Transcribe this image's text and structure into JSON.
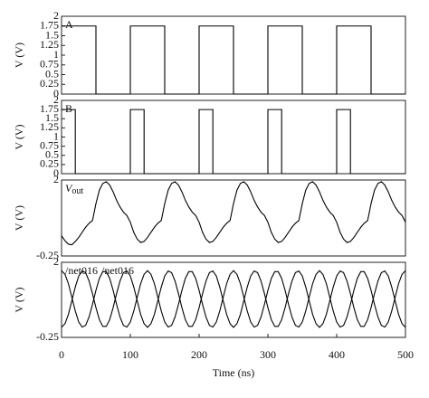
{
  "chart_data": [
    {
      "type": "line",
      "ylabel": "V (V)",
      "x": [
        0,
        50,
        50,
        100,
        100,
        150,
        150,
        200,
        200,
        250,
        250,
        300,
        300,
        350,
        350,
        400,
        400,
        450,
        450,
        500
      ],
      "series": [
        {
          "name": "A",
          "color": "#000000",
          "values": [
            1.75,
            1.75,
            0,
            0,
            1.75,
            1.75,
            0,
            0,
            1.75,
            1.75,
            0,
            0,
            1.75,
            1.75,
            0,
            0,
            1.75,
            1.75,
            0,
            0
          ]
        }
      ],
      "xlim": [
        0,
        500
      ],
      "ylim": [
        0,
        2
      ],
      "yticks": [
        0,
        0.25,
        0.5,
        0.75,
        1,
        1.25,
        1.5,
        1.75,
        2
      ]
    },
    {
      "type": "line",
      "ylabel": "V (V)",
      "x": [
        0,
        20,
        20,
        100,
        100,
        120,
        120,
        200,
        200,
        220,
        220,
        300,
        300,
        320,
        320,
        400,
        400,
        420,
        420,
        500
      ],
      "series": [
        {
          "name": "B",
          "color": "#000000",
          "values": [
            1.75,
            1.75,
            0,
            0,
            1.75,
            1.75,
            0,
            0,
            1.75,
            1.75,
            0,
            0,
            1.75,
            1.75,
            0,
            0,
            1.75,
            1.75,
            0,
            0
          ]
        }
      ],
      "xlim": [
        0,
        500
      ],
      "ylim": [
        0,
        2
      ],
      "yticks": [
        0,
        0.25,
        0.5,
        0.75,
        1,
        1.25,
        1.5,
        1.75,
        2
      ]
    },
    {
      "type": "line",
      "ylabel": "V (V)",
      "x": [
        0,
        5,
        10,
        15,
        20,
        25,
        30,
        35,
        40,
        45,
        50,
        55,
        60,
        65,
        70,
        75,
        80,
        85,
        90,
        95,
        100,
        105,
        110,
        115,
        120,
        125,
        130,
        135,
        140,
        145,
        150,
        155,
        160,
        165,
        170,
        175,
        180,
        185,
        190,
        195,
        200,
        205,
        210,
        215,
        220,
        225,
        230,
        235,
        240,
        245,
        250,
        255,
        260,
        265,
        270,
        275,
        280,
        285,
        290,
        295,
        300,
        305,
        310,
        315,
        320,
        325,
        330,
        335,
        340,
        345,
        350,
        355,
        360,
        365,
        370,
        375,
        380,
        385,
        390,
        395,
        400,
        405,
        410,
        415,
        420,
        425,
        430,
        435,
        440,
        445,
        450,
        455,
        460,
        465,
        470,
        475,
        480,
        485,
        490,
        495,
        500
      ],
      "series": [
        {
          "name": "V",
          "name_subscript": "out",
          "color": "#000000",
          "values": [
            0.35,
            0.2,
            0.1,
            0.08,
            0.18,
            0.3,
            0.45,
            0.6,
            0.72,
            0.8,
            1.3,
            1.7,
            1.9,
            1.95,
            1.85,
            1.65,
            1.4,
            1.2,
            1.05,
            0.95,
            0.75,
            0.45,
            0.25,
            0.15,
            0.18,
            0.3,
            0.45,
            0.6,
            0.72,
            0.8,
            1.3,
            1.7,
            1.9,
            1.95,
            1.85,
            1.65,
            1.4,
            1.2,
            1.05,
            0.95,
            0.75,
            0.45,
            0.25,
            0.15,
            0.18,
            0.3,
            0.45,
            0.6,
            0.72,
            0.8,
            1.3,
            1.7,
            1.9,
            1.95,
            1.85,
            1.65,
            1.4,
            1.2,
            1.05,
            0.95,
            0.75,
            0.45,
            0.25,
            0.15,
            0.18,
            0.3,
            0.45,
            0.6,
            0.72,
            0.8,
            1.3,
            1.7,
            1.9,
            1.95,
            1.85,
            1.65,
            1.4,
            1.2,
            1.05,
            0.95,
            0.75,
            0.45,
            0.25,
            0.15,
            0.18,
            0.3,
            0.45,
            0.6,
            0.72,
            0.8,
            1.3,
            1.7,
            1.9,
            1.95,
            1.85,
            1.65,
            1.4,
            1.2,
            1.05,
            0.95,
            0.75
          ]
        }
      ],
      "xlim": [
        0,
        500
      ],
      "ylim": [
        -0.25,
        2
      ],
      "yticks": [
        -0.25,
        2
      ]
    },
    {
      "type": "line",
      "ylabel": "V (V)",
      "xlabel": "Time (ns)",
      "x": [
        0,
        5,
        10,
        15,
        20,
        25,
        30,
        35,
        40,
        45,
        50,
        55,
        60,
        65,
        70,
        75,
        80,
        85,
        90,
        95,
        100,
        105,
        110,
        115,
        120,
        125,
        130,
        135,
        140,
        145,
        150,
        155,
        160,
        165,
        170,
        175,
        180,
        185,
        190,
        195,
        200,
        205,
        210,
        215,
        220,
        225,
        230,
        235,
        240,
        245,
        250,
        255,
        260,
        265,
        270,
        275,
        280,
        285,
        290,
        295,
        300,
        305,
        310,
        315,
        320,
        325,
        330,
        335,
        340,
        345,
        350,
        355,
        360,
        365,
        370,
        375,
        380,
        385,
        390,
        395,
        400,
        405,
        410,
        415,
        420,
        425,
        430,
        435,
        440,
        445,
        450,
        455,
        460,
        465,
        470,
        475,
        480,
        485,
        490,
        495,
        500
      ],
      "series": [
        {
          "name": "/net016",
          "color": "#000000",
          "values": [
            1.75,
            1.64,
            1.36,
            0.95,
            0.54,
            0.21,
            0.06,
            0.11,
            0.36,
            0.74,
            1.16,
            1.52,
            1.72,
            1.72,
            1.52,
            1.16,
            0.74,
            0.36,
            0.11,
            0.06,
            0.21,
            0.54,
            0.95,
            1.36,
            1.64,
            1.75,
            1.64,
            1.36,
            0.95,
            0.54,
            0.21,
            0.06,
            0.11,
            0.36,
            0.74,
            1.16,
            1.52,
            1.72,
            1.72,
            1.52,
            1.16,
            0.74,
            0.36,
            0.11,
            0.06,
            0.21,
            0.54,
            0.95,
            1.36,
            1.64,
            1.75,
            1.64,
            1.36,
            0.95,
            0.54,
            0.21,
            0.06,
            0.11,
            0.36,
            0.74,
            1.16,
            1.52,
            1.72,
            1.72,
            1.52,
            1.16,
            0.74,
            0.36,
            0.11,
            0.06,
            0.21,
            0.54,
            0.95,
            1.36,
            1.64,
            1.75,
            1.64,
            1.36,
            0.95,
            0.54,
            0.21,
            0.06,
            0.11,
            0.36,
            0.74,
            1.16,
            1.52,
            1.72,
            1.72,
            1.52,
            1.16,
            0.74,
            0.36,
            0.11,
            0.06,
            0.21,
            0.54,
            0.95,
            1.36,
            1.64,
            1.75
          ]
        },
        {
          "name": "/net016",
          "color": "#000000",
          "values": [
            0.05,
            0.16,
            0.44,
            0.85,
            1.26,
            1.59,
            1.74,
            1.69,
            1.44,
            1.06,
            0.64,
            0.28,
            0.08,
            0.08,
            0.28,
            0.64,
            1.06,
            1.44,
            1.69,
            1.74,
            1.59,
            1.26,
            0.85,
            0.44,
            0.16,
            0.05,
            0.16,
            0.44,
            0.85,
            1.26,
            1.59,
            1.74,
            1.69,
            1.44,
            1.06,
            0.64,
            0.28,
            0.08,
            0.08,
            0.28,
            0.64,
            1.06,
            1.44,
            1.69,
            1.74,
            1.59,
            1.26,
            0.85,
            0.44,
            0.16,
            0.05,
            0.16,
            0.44,
            0.85,
            1.26,
            1.59,
            1.74,
            1.69,
            1.44,
            1.06,
            0.64,
            0.28,
            0.08,
            0.08,
            0.28,
            0.64,
            1.06,
            1.44,
            1.69,
            1.74,
            1.59,
            1.26,
            0.85,
            0.44,
            0.16,
            0.05,
            0.16,
            0.44,
            0.85,
            1.26,
            1.59,
            1.74,
            1.69,
            1.44,
            1.06,
            0.64,
            0.28,
            0.08,
            0.08,
            0.28,
            0.64,
            1.06,
            1.44,
            1.69,
            1.74,
            1.59,
            1.26,
            0.85,
            0.44,
            0.16,
            0.05
          ]
        }
      ],
      "xlim": [
        0,
        500
      ],
      "ylim": [
        -0.25,
        2
      ],
      "yticks": [
        -0.25,
        2
      ],
      "xticks": [
        0,
        100,
        200,
        300,
        400,
        500
      ]
    }
  ]
}
